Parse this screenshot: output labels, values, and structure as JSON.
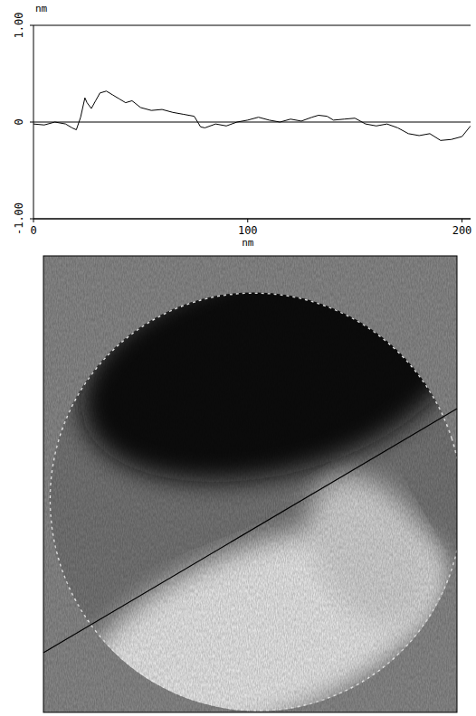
{
  "chart_data": {
    "type": "line",
    "y_label": "nm",
    "x_label": "nm",
    "x": [
      0,
      5,
      10,
      15,
      18,
      20,
      22,
      24,
      25,
      27,
      29,
      31,
      34,
      37,
      40,
      43,
      46,
      50,
      55,
      60,
      65,
      70,
      75,
      78,
      80,
      85,
      90,
      95,
      100,
      105,
      110,
      115,
      120,
      125,
      130,
      133,
      137,
      140,
      145,
      150,
      155,
      160,
      165,
      170,
      175,
      180,
      185,
      190,
      195,
      200,
      204
    ],
    "values": [
      -0.02,
      -0.03,
      0,
      -0.02,
      -0.06,
      -0.08,
      0.05,
      0.25,
      0.2,
      0.14,
      0.22,
      0.3,
      0.32,
      0.28,
      0.24,
      0.2,
      0.22,
      0.15,
      0.12,
      0.13,
      0.1,
      0.08,
      0.06,
      -0.05,
      -0.06,
      -0.02,
      -0.04,
      0,
      0.02,
      0.05,
      0.02,
      0.0,
      0.03,
      0.01,
      0.05,
      0.07,
      0.06,
      0.02,
      0.03,
      0.04,
      -0.02,
      -0.04,
      -0.02,
      -0.06,
      -0.12,
      -0.14,
      -0.12,
      -0.19,
      -0.18,
      -0.15,
      -0.04
    ],
    "color": "#000000",
    "xlim": [
      0,
      204
    ],
    "ylim": [
      -1,
      1
    ],
    "xticks": [
      0,
      100,
      200
    ],
    "yticks": [
      {
        "value": -1,
        "label": "-1.00"
      },
      0,
      {
        "value": 1,
        "label": "1.00"
      }
    ],
    "grid": true
  }
}
